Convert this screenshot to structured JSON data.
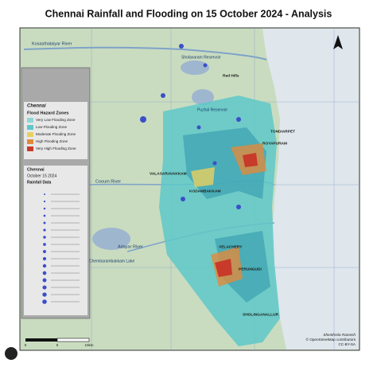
{
  "title": "Chennai Rainfall and Flooding on 15 October 2024 - Analysis",
  "places": {
    "rivers": [
      "Kosasthalaiyar River",
      "Cooum River",
      "Adayar River"
    ],
    "lakes": [
      "Sholavaram Reservoir",
      "Puzhal Reservoir",
      "Chembarambakkam Lake"
    ],
    "areas": [
      "Red Hills",
      "TONDIARPET",
      "ROYAPURAM",
      "KODAMBAKKAM",
      "VALASARAVAKKAM",
      "VELACHERY",
      "PERUNGUDI",
      "SHOLINGANALLUR"
    ]
  },
  "legend": {
    "city": "Chennai",
    "heading": "Flood Hazard Zones",
    "zones": [
      "Very Low Flooding Zone",
      "Low Flooding Zone",
      "Moderate Flooding Zone",
      "High Flooding Zone",
      "Very High Flooding Zone"
    ],
    "rain_city": "Chennai",
    "rain_date": "October 15 2024",
    "rain_heading": "Rainfall Data"
  },
  "scale": [
    "0",
    "5",
    "10km"
  ],
  "credits": [
    "Shenthrela Ramesh",
    "© OpenStreetMap contributors",
    "CC-BY-SA"
  ]
}
